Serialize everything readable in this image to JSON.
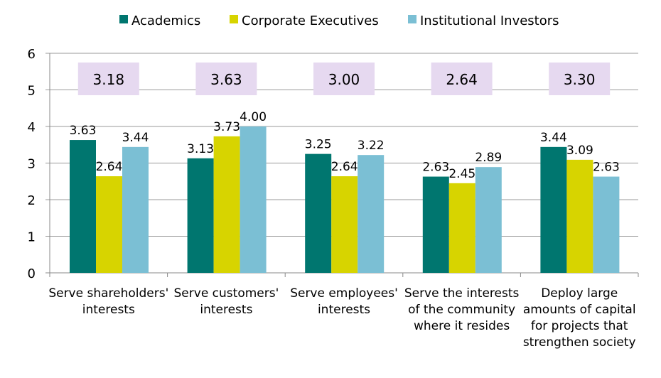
{
  "chart_data": {
    "type": "bar",
    "title": "",
    "xlabel": "",
    "ylabel": "",
    "ylim": [
      0,
      6
    ],
    "yticks": [
      "0",
      "1",
      "2",
      "3",
      "4",
      "5",
      "6"
    ],
    "grid": true,
    "legend_position": "top",
    "categories": [
      [
        "Serve shareholders'",
        "interests"
      ],
      [
        "Serve customers'",
        "interests"
      ],
      [
        "Serve employees'",
        "interests"
      ],
      [
        "Serve the interests",
        "of the community",
        "where it resides"
      ],
      [
        "Deploy large",
        "amounts of capital",
        "for projects that",
        "strengthen society"
      ]
    ],
    "series": [
      {
        "name": "Academics",
        "color": "#00766f",
        "values": [
          3.63,
          3.13,
          3.25,
          2.63,
          3.44
        ],
        "labels": [
          "3.63",
          "3.13",
          "3.25",
          "2.63",
          "3.44"
        ]
      },
      {
        "name": "Corporate Executives",
        "color": "#d7d400",
        "values": [
          2.64,
          3.73,
          2.64,
          2.45,
          3.09
        ],
        "labels": [
          "2.64",
          "3.73",
          "2.64",
          "2.45",
          "3.09"
        ]
      },
      {
        "name": "Institutional Investors",
        "color": "#7bbfd4",
        "values": [
          3.44,
          4.0,
          3.22,
          2.89,
          2.63
        ],
        "labels": [
          "3.44",
          "4.00",
          "3.22",
          "2.89",
          "2.63"
        ]
      }
    ],
    "averages": [
      "3.18",
      "3.63",
      "3.00",
      "2.64",
      "3.30"
    ],
    "average_box_color": "#e6d9f0"
  }
}
